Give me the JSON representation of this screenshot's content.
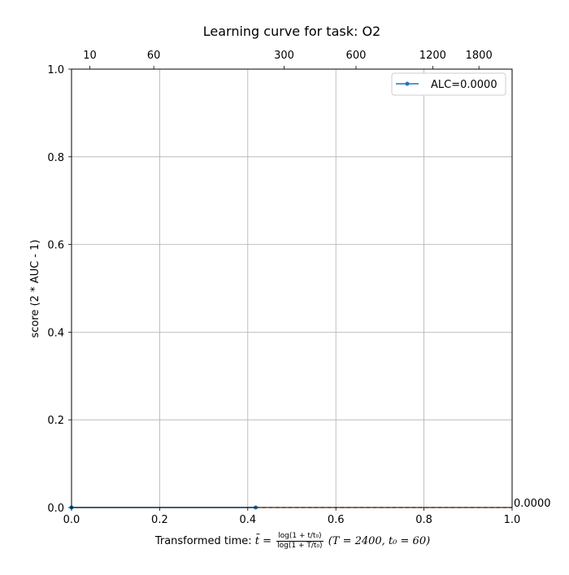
{
  "chart_data": {
    "type": "line",
    "title": "Learning curve for task: O2",
    "ylabel": "score (2 * AUC - 1)",
    "xlabel": {
      "prefix": "Transformed time: ",
      "var": "t̃ = ",
      "num": "log(1 + t/t₀)",
      "den": "log(1 + T/t₀)",
      "params": "(T = 2400,   t₀ = 60)"
    },
    "xlim": [
      0.0,
      1.0
    ],
    "ylim": [
      0.0,
      1.0
    ],
    "x_ticks": [
      0.0,
      0.2,
      0.4,
      0.6,
      0.8,
      1.0
    ],
    "x_tick_labels": [
      "0.0",
      "0.2",
      "0.4",
      "0.6",
      "0.8",
      "1.0"
    ],
    "y_ticks": [
      0.0,
      0.2,
      0.4,
      0.6,
      0.8,
      1.0
    ],
    "y_tick_labels": [
      "0.0",
      "0.2",
      "0.4",
      "0.6",
      "0.8",
      "1.0"
    ],
    "top_axis": {
      "T": 2400,
      "t0": 60,
      "ticks": [
        10,
        60,
        300,
        600,
        1200,
        1800
      ],
      "tick_labels": [
        "10",
        "60",
        "300",
        "600",
        "1200",
        "1800"
      ]
    },
    "grid": true,
    "legend_placement": "top-right",
    "series": [
      {
        "name": "ALC=0.0000",
        "color": "#1f77b4",
        "style": "solid",
        "marker": "dot",
        "x": [
          0.0,
          0.418
        ],
        "y": [
          0.0,
          0.0
        ]
      },
      {
        "color": "#ff7f0e",
        "style": "dashed",
        "x": [
          0.418,
          1.0
        ],
        "y": [
          0.0,
          0.0
        ]
      }
    ],
    "annotation": {
      "text": "0.0000",
      "x": 1.0,
      "y": 0.0
    }
  }
}
